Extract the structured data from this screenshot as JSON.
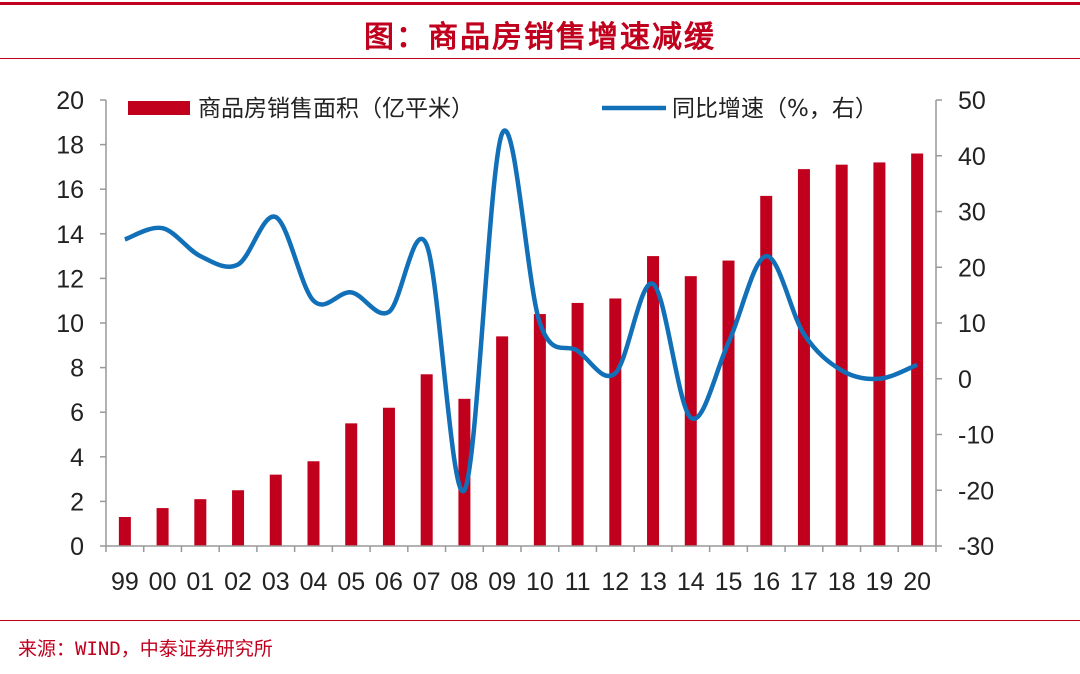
{
  "title": "图：商品房销售增速减缓",
  "source": "来源：WIND，中泰证券研究所",
  "colors": {
    "bar": "#c0001d",
    "line": "#1170b8",
    "accent": "#c0001d"
  },
  "chart_data": {
    "type": "bar",
    "categories": [
      "99",
      "00",
      "01",
      "02",
      "03",
      "04",
      "05",
      "06",
      "07",
      "08",
      "09",
      "10",
      "11",
      "12",
      "13",
      "14",
      "15",
      "16",
      "17",
      "18",
      "19",
      "20"
    ],
    "series": [
      {
        "name": "商品房销售面积（亿平米）",
        "type": "bar",
        "axis": "left",
        "values": [
          1.3,
          1.7,
          2.1,
          2.5,
          3.2,
          3.8,
          5.5,
          6.2,
          7.7,
          6.6,
          9.4,
          10.4,
          10.9,
          11.1,
          13.0,
          12.1,
          12.8,
          15.7,
          16.9,
          17.1,
          17.2,
          17.6
        ]
      },
      {
        "name": "同比增速（%，右）",
        "type": "line",
        "axis": "right",
        "values": [
          25.0,
          27.0,
          22.0,
          20.5,
          29.0,
          14.0,
          15.5,
          12.0,
          24.0,
          -20.0,
          44.0,
          10.0,
          5.0,
          1.0,
          17.0,
          -7.0,
          6.5,
          22.0,
          8.0,
          1.5,
          0.0,
          2.5
        ]
      }
    ],
    "ylim": [
      0,
      20
    ],
    "y_ticks": [
      "0",
      "2",
      "4",
      "6",
      "8",
      "10",
      "12",
      "14",
      "16",
      "18",
      "20"
    ],
    "y2lim": [
      -30,
      50
    ],
    "y2_ticks": [
      "-30",
      "-20",
      "-10",
      "0",
      "10",
      "20",
      "30",
      "40",
      "50"
    ],
    "legend_position": "top"
  }
}
